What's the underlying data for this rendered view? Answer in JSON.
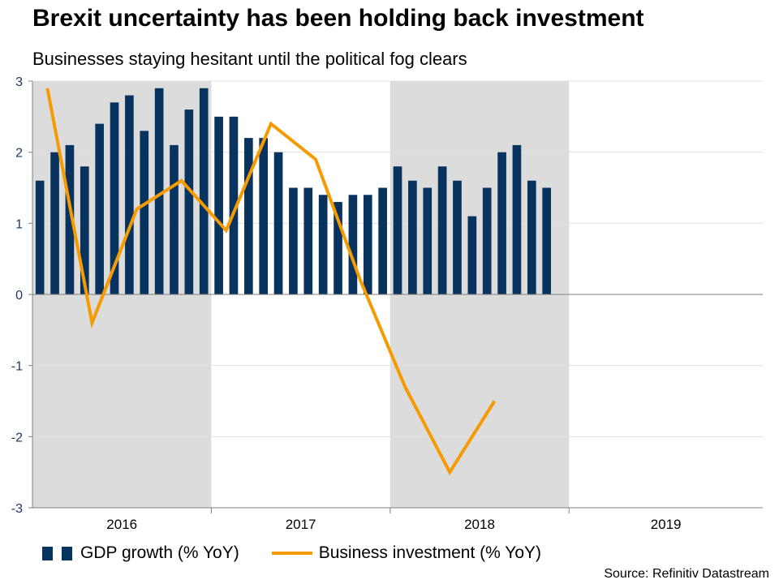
{
  "title": "Brexit uncertainty has been holding back investment",
  "subtitle": "Businesses staying hesitant until the political fog clears",
  "source": "Source: Refinitiv Datastream",
  "colors": {
    "bars": "#08335e",
    "line": "#f59b00",
    "shading": "#dcdcdc",
    "grid": "#e0e0e0",
    "axis": "#7f7f7f",
    "tick_label": "#1f3864"
  },
  "chart_data": {
    "type": "bar",
    "title": "Brexit uncertainty has been holding back investment",
    "subtitle": "Businesses staying hesitant until the political fog clears",
    "xlabel": "",
    "ylabel": "",
    "ylim": [
      -3,
      3
    ],
    "yticks": [
      "3",
      "2",
      "1",
      "0",
      "-1",
      "-2",
      "-3"
    ],
    "grid": true,
    "legend_position": "bottom",
    "x_range_months": [
      0,
      49
    ],
    "years": [
      {
        "label": "2016",
        "start_month": 0,
        "end_month": 12
      },
      {
        "label": "2017",
        "start_month": 12,
        "end_month": 24
      },
      {
        "label": "2018",
        "start_month": 24,
        "end_month": 36
      },
      {
        "label": "2019",
        "start_month": 36,
        "end_month": 49
      }
    ],
    "shaded_ranges_months": [
      [
        0,
        12
      ],
      [
        24,
        36
      ]
    ],
    "series": [
      {
        "name": "GDP growth (% YoY)",
        "type": "bar",
        "values": [
          1.6,
          2.0,
          2.1,
          1.8,
          2.4,
          2.7,
          2.8,
          2.3,
          2.9,
          2.1,
          2.6,
          2.9,
          2.5,
          2.5,
          2.2,
          2.2,
          2.0,
          1.5,
          1.5,
          1.4,
          1.3,
          1.4,
          1.4,
          1.5,
          1.8,
          1.6,
          1.5,
          1.8,
          1.6,
          1.1,
          1.5,
          2.0,
          2.1,
          1.6,
          1.5
        ]
      },
      {
        "name": "Business investment (% YoY)",
        "type": "line",
        "x_months": [
          1,
          4,
          7,
          10,
          13,
          16,
          19,
          22,
          25,
          28,
          31
        ],
        "values": [
          2.9,
          -0.4,
          1.2,
          1.6,
          0.9,
          2.4,
          1.9,
          0.2,
          -1.3,
          -2.5,
          -1.5
        ]
      }
    ]
  }
}
